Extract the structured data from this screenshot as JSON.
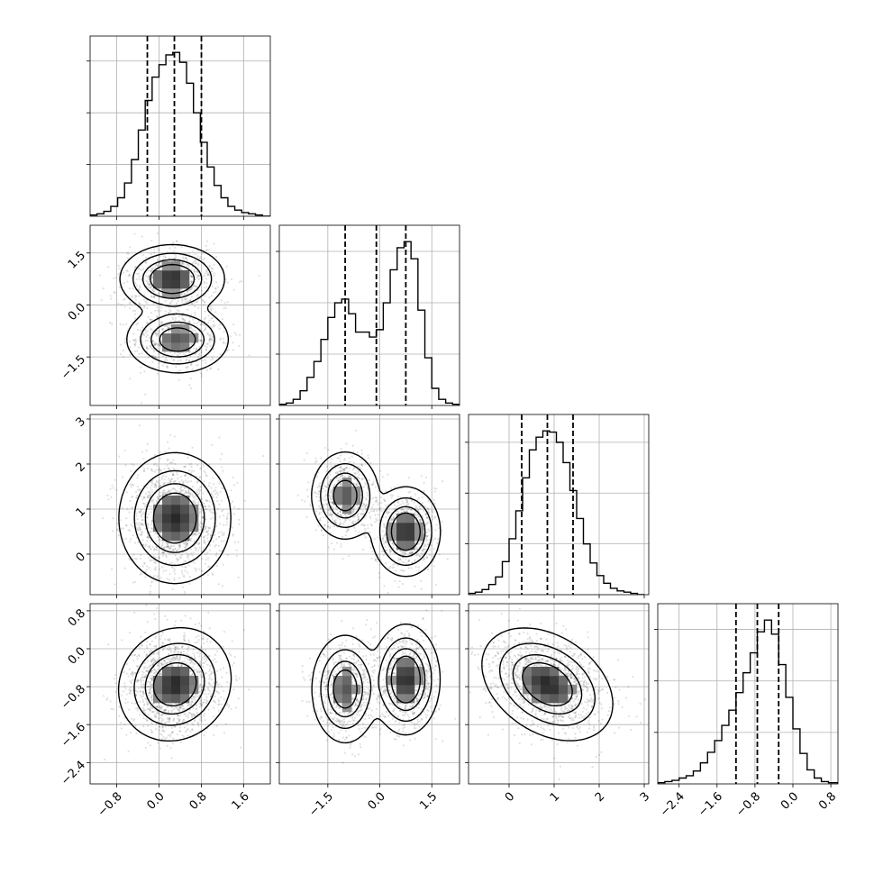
{
  "chart_data": {
    "type": "corner",
    "grid": true,
    "color": "#000000",
    "variables": [
      {
        "range": [
          -1.3,
          2.1
        ],
        "ticks": [
          -0.8,
          0.0,
          0.8,
          1.6
        ],
        "tick_labels": [
          "−0.8",
          "0.0",
          "0.8",
          "1.6"
        ]
      },
      {
        "range": [
          -2.9,
          2.3
        ],
        "ticks": [
          -1.5,
          0.0,
          1.5
        ],
        "tick_labels": [
          "−1.5",
          "0.0",
          "1.5"
        ]
      },
      {
        "range": [
          -0.9,
          3.1
        ],
        "ticks": [
          0,
          1,
          2,
          3
        ],
        "tick_labels": [
          "0",
          "1",
          "2",
          "3"
        ]
      },
      {
        "range": [
          -2.85,
          0.95
        ],
        "ticks": [
          -2.4,
          -1.6,
          -0.8,
          0.0,
          0.8
        ],
        "tick_labels": [
          "−2.4",
          "−1.6",
          "−0.8",
          "0.0",
          "0.8"
        ]
      }
    ],
    "histograms": [
      {
        "variable": 0,
        "bin_edges": [
          -1.3,
          -1.17,
          -1.04,
          -0.91,
          -0.78,
          -0.65,
          -0.52,
          -0.39,
          -0.26,
          -0.13,
          0.0,
          0.13,
          0.26,
          0.39,
          0.52,
          0.65,
          0.78,
          0.91,
          1.04,
          1.17,
          1.3,
          1.43,
          1.56,
          1.69,
          1.82,
          1.95,
          2.1
        ],
        "counts": [
          1,
          2,
          4,
          8,
          15,
          27,
          46,
          70,
          94,
          113,
          123,
          131,
          133,
          125,
          108,
          84,
          60,
          40,
          25,
          15,
          8,
          5,
          3,
          2,
          1,
          0
        ],
        "quantiles": [
          -0.22,
          0.29,
          0.8
        ]
      },
      {
        "variable": 1,
        "bin_edges": [
          -2.9,
          -2.7,
          -2.5,
          -2.3,
          -2.1,
          -1.9,
          -1.7,
          -1.5,
          -1.3,
          -1.1,
          -0.9,
          -0.7,
          -0.5,
          -0.3,
          -0.1,
          0.1,
          0.3,
          0.5,
          0.7,
          0.9,
          1.1,
          1.3,
          1.5,
          1.7,
          1.9,
          2.1,
          2.3
        ],
        "counts": [
          1,
          2,
          5,
          12,
          23,
          36,
          54,
          72,
          84,
          87,
          75,
          60,
          60,
          56,
          62,
          84,
          111,
          129,
          134,
          120,
          78,
          39,
          14,
          5,
          2,
          1
        ],
        "quantiles": [
          -1.0,
          -0.1,
          0.75
        ]
      },
      {
        "variable": 2,
        "bin_edges": [
          -0.9,
          -0.75,
          -0.6,
          -0.45,
          -0.3,
          -0.15,
          0.0,
          0.15,
          0.3,
          0.45,
          0.6,
          0.75,
          0.9,
          1.05,
          1.2,
          1.35,
          1.5,
          1.65,
          1.8,
          1.95,
          2.1,
          2.25,
          2.4,
          2.55,
          2.7,
          2.85,
          3.0
        ],
        "counts": [
          1,
          2,
          4,
          8,
          14,
          26,
          44,
          66,
          92,
          114,
          124,
          129,
          128,
          120,
          104,
          82,
          60,
          40,
          25,
          15,
          9,
          5,
          3,
          2,
          1,
          0
        ],
        "quantiles": [
          0.28,
          0.85,
          1.42
        ]
      },
      {
        "variable": 3,
        "bin_edges": [
          -2.85,
          -2.7,
          -2.55,
          -2.4,
          -2.25,
          -2.1,
          -1.95,
          -1.8,
          -1.65,
          -1.5,
          -1.35,
          -1.2,
          -1.05,
          -0.9,
          -0.75,
          -0.6,
          -0.45,
          -0.3,
          -0.15,
          0.0,
          0.15,
          0.3,
          0.45,
          0.6,
          0.75,
          0.95
        ],
        "counts": [
          1,
          2,
          3,
          5,
          7,
          11,
          18,
          27,
          37,
          50,
          63,
          78,
          95,
          112,
          130,
          140,
          128,
          102,
          74,
          47,
          26,
          12,
          5,
          2,
          1
        ],
        "quantiles": [
          -1.2,
          -0.75,
          -0.3
        ]
      }
    ],
    "pairs": [
      {
        "x_var": 0,
        "y_var": 1,
        "density": [
          {
            "weight": 0.55,
            "mean": [
              0.25,
              0.75
            ],
            "sd": [
              0.38,
              0.38
            ],
            "rho": 0.0
          },
          {
            "weight": 0.45,
            "mean": [
              0.35,
              -1.0
            ],
            "sd": [
              0.38,
              0.38
            ],
            "rho": 0.0
          }
        ],
        "contour_levels": [
          0.4,
          0.62,
          0.84,
          0.97
        ]
      },
      {
        "x_var": 0,
        "y_var": 2,
        "density": [
          {
            "weight": 1.0,
            "mean": [
              0.3,
              0.8
            ],
            "sd": [
              0.4,
              0.55
            ],
            "rho": 0.0
          }
        ],
        "contour_levels": [
          0.4,
          0.62,
          0.84,
          0.97
        ]
      },
      {
        "x_var": 1,
        "y_var": 2,
        "density": [
          {
            "weight": 0.45,
            "mean": [
              -1.0,
              1.3
            ],
            "sd": [
              0.38,
              0.38
            ],
            "rho": 0.0
          },
          {
            "weight": 0.55,
            "mean": [
              0.75,
              0.5
            ],
            "sd": [
              0.38,
              0.38
            ],
            "rho": 0.0
          }
        ],
        "contour_levels": [
          0.4,
          0.62,
          0.84,
          0.97
        ]
      },
      {
        "x_var": 0,
        "y_var": 3,
        "density": [
          {
            "weight": 1.0,
            "mean": [
              0.3,
              -0.75
            ],
            "sd": [
              0.4,
              0.45
            ],
            "rho": 0.1
          }
        ],
        "contour_levels": [
          0.4,
          0.62,
          0.84,
          0.97
        ]
      },
      {
        "x_var": 1,
        "y_var": 3,
        "density": [
          {
            "weight": 0.45,
            "mean": [
              -1.0,
              -0.85
            ],
            "sd": [
              0.38,
              0.45
            ],
            "rho": 0.0
          },
          {
            "weight": 0.55,
            "mean": [
              0.75,
              -0.65
            ],
            "sd": [
              0.38,
              0.45
            ],
            "rho": 0.0
          }
        ],
        "contour_levels": [
          0.4,
          0.62,
          0.84,
          0.97
        ]
      },
      {
        "x_var": 2,
        "y_var": 3,
        "density": [
          {
            "weight": 1.0,
            "mean": [
              0.85,
              -0.75
            ],
            "sd": [
              0.55,
              0.45
            ],
            "rho": -0.35
          }
        ],
        "contour_levels": [
          0.4,
          0.62,
          0.84,
          0.97
        ]
      }
    ]
  }
}
